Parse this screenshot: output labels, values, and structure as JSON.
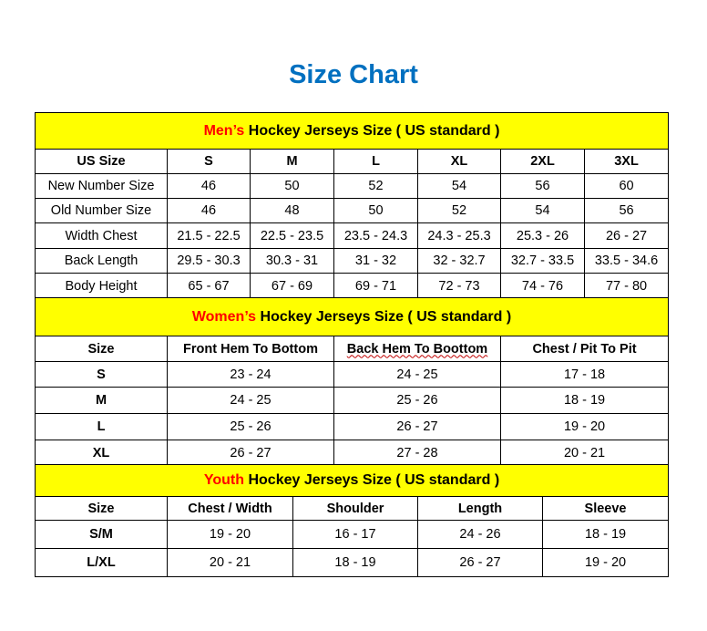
{
  "title": "Size Chart",
  "colors": {
    "header_bg": "#FFFF00",
    "accent": "#FF0000",
    "title": "#0070C0"
  },
  "sections": [
    {
      "id": "men",
      "heading_accent": "Men’s",
      "heading_rest": " Hockey Jerseys Size ( US standard )",
      "columns": [
        "US Size",
        "S",
        "M",
        "L",
        "XL",
        "2XL",
        "3XL"
      ],
      "rows": [
        [
          "New Number Size",
          "46",
          "50",
          "52",
          "54",
          "56",
          "60"
        ],
        [
          "Old Number Size",
          "46",
          "48",
          "50",
          "52",
          "54",
          "56"
        ],
        [
          "Width Chest",
          "21.5 - 22.5",
          "22.5 - 23.5",
          "23.5 - 24.3",
          "24.3 - 25.3",
          "25.3 - 26",
          "26 - 27"
        ],
        [
          "Back Length",
          "29.5 - 30.3",
          "30.3 - 31",
          "31 - 32",
          "32 - 32.7",
          "32.7 - 33.5",
          "33.5 - 34.6"
        ],
        [
          "Body Height",
          "65 - 67",
          "67 - 69",
          "69 - 71",
          "72 - 73",
          "74 - 76",
          "77 - 80"
        ]
      ]
    },
    {
      "id": "women",
      "heading_accent": "Women’s",
      "heading_rest": " Hockey Jerseys Size ( US standard )",
      "columns": [
        "Size",
        "Front Hem To Bottom",
        "Back Hem To Boottom",
        "Chest / Pit To Pit"
      ],
      "rows": [
        [
          "S",
          "23 - 24",
          "24 - 25",
          "17 - 18"
        ],
        [
          "M",
          "24 - 25",
          "25 - 26",
          "18 - 19"
        ],
        [
          "L",
          "25 - 26",
          "26 - 27",
          "19 - 20"
        ],
        [
          "XL",
          "26 - 27",
          "27 - 28",
          "20 - 21"
        ]
      ]
    },
    {
      "id": "youth",
      "heading_accent": "Youth",
      "heading_rest": " Hockey Jerseys Size ( US standard )",
      "columns": [
        "Size",
        "Chest / Width",
        "Shoulder",
        "Length",
        "Sleeve"
      ],
      "rows": [
        [
          "S/M",
          "19 - 20",
          "16 - 17",
          "24 - 26",
          "18 - 19"
        ],
        [
          "L/XL",
          "20 - 21",
          "18 - 19",
          "26 - 27",
          "19 - 20"
        ]
      ]
    }
  ]
}
